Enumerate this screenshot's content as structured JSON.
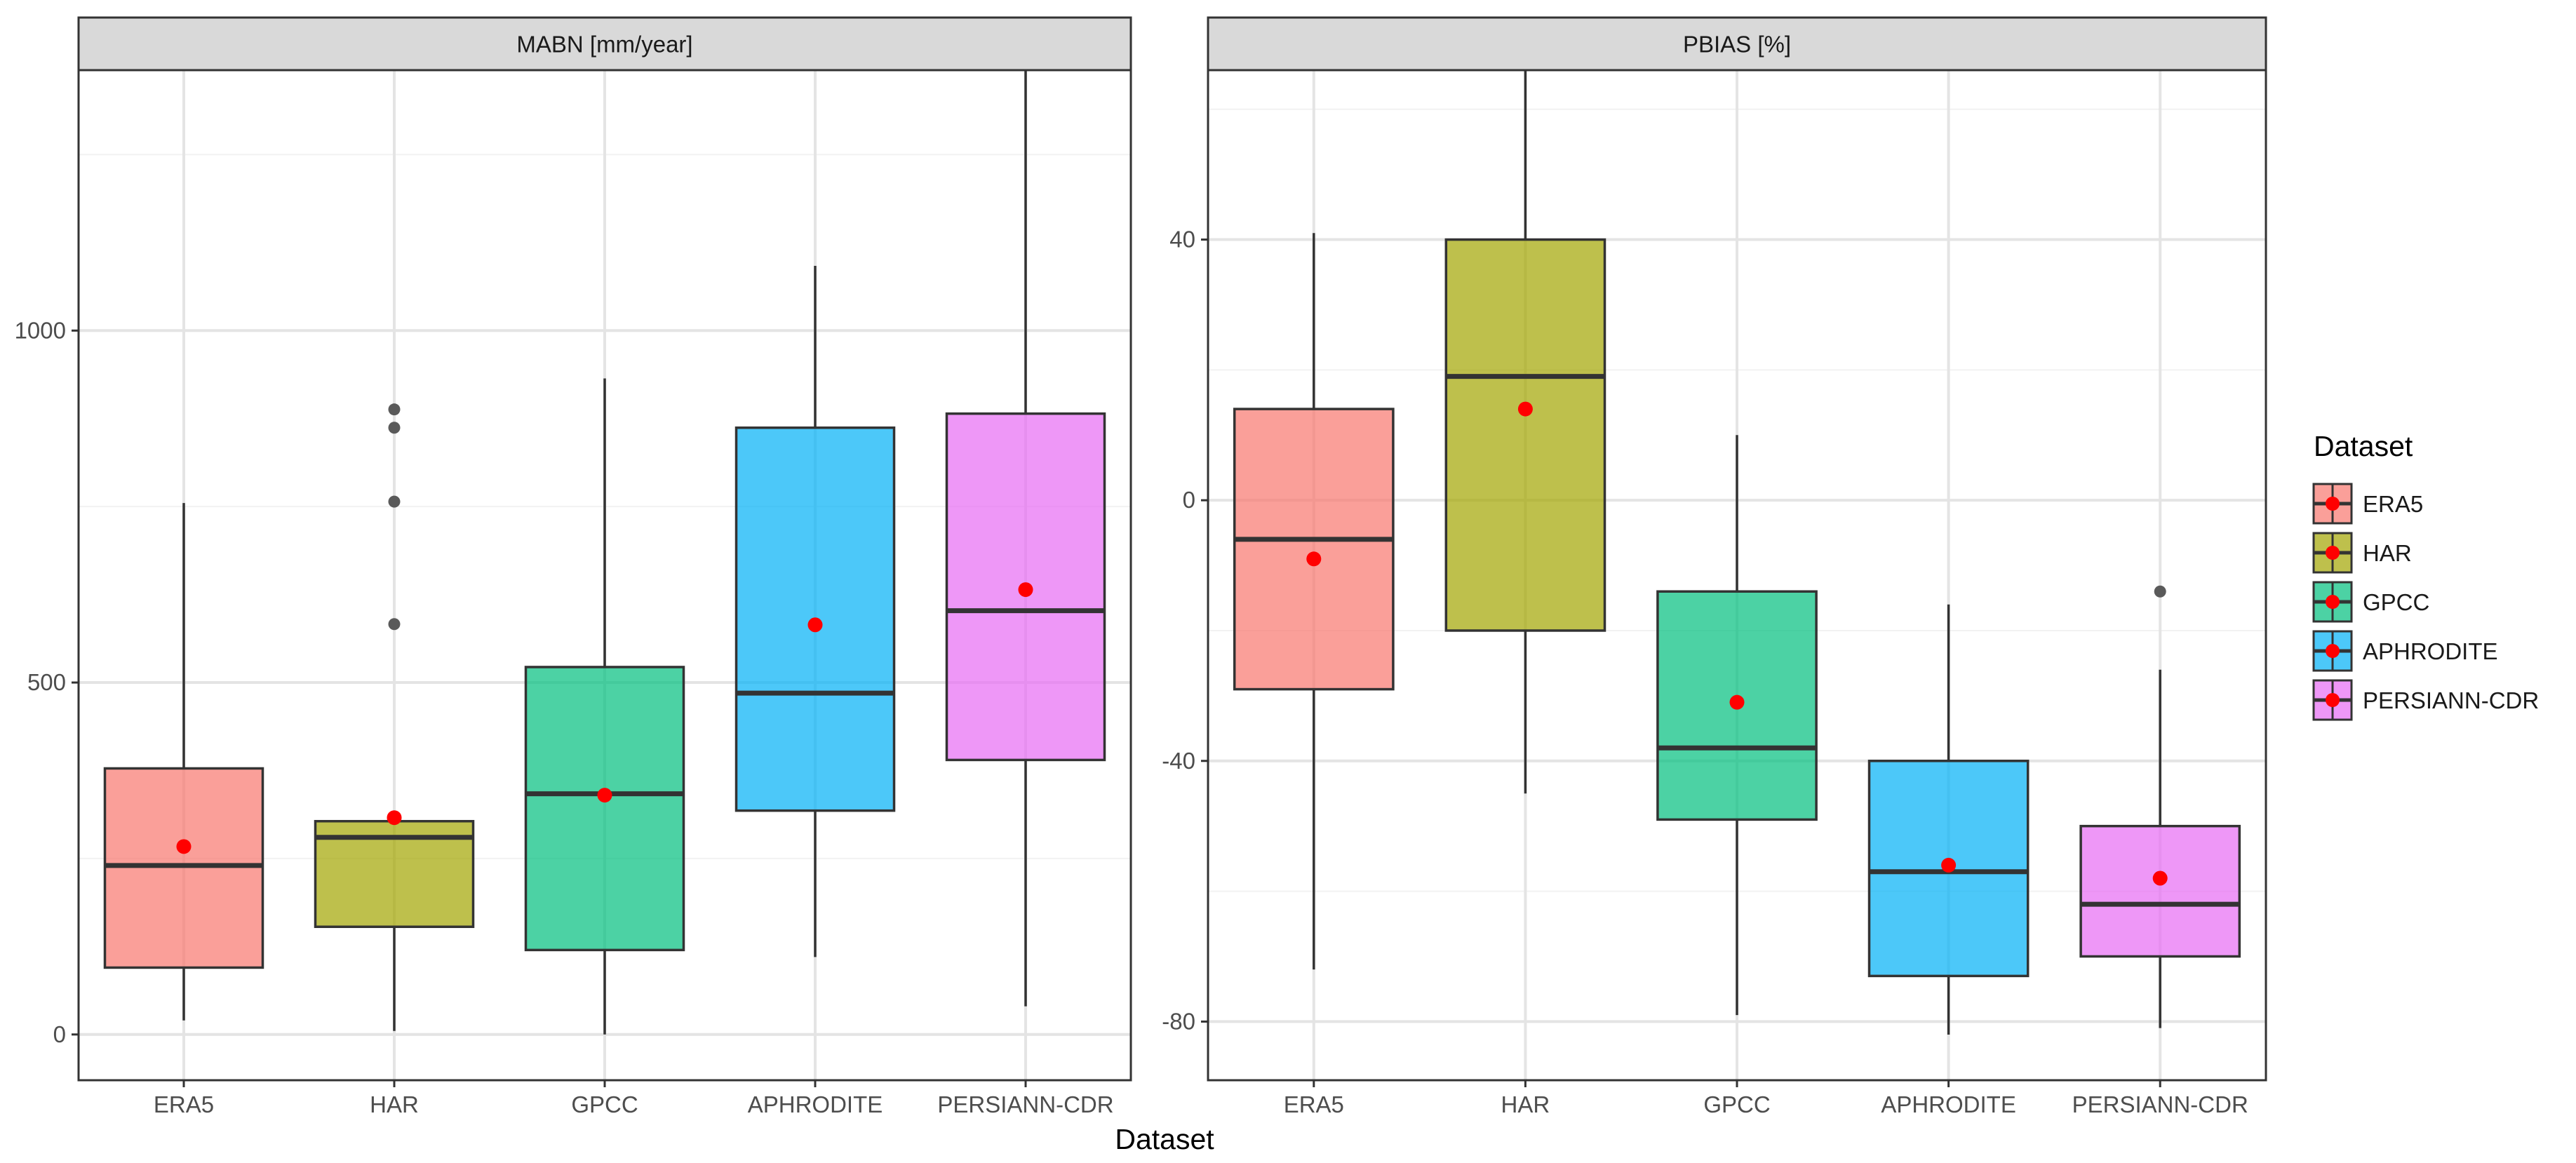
{
  "chart_data": {
    "type": "boxplot",
    "xlabel": "Dataset",
    "categories": [
      "ERA5",
      "HAR",
      "GPCC",
      "APHRODITE",
      "PERSIANN-CDR"
    ],
    "fill_colors": [
      "#F8766D",
      "#A3A500",
      "#00BF7D",
      "#00B0F6",
      "#E76BF3"
    ],
    "mean_marker_color": "#ff0000",
    "legend": {
      "title": "Dataset",
      "placement": "right",
      "entries": [
        "ERA5",
        "HAR",
        "GPCC",
        "APHRODITE",
        "PERSIANN-CDR"
      ]
    },
    "panels": [
      {
        "title": "MABN [mm/year]",
        "ylim": [
          -65,
          1370
        ],
        "yticks": [
          0,
          500,
          1000
        ],
        "ytick_labels": [
          "0",
          "500",
          "1000"
        ],
        "minor_yticks": [
          250,
          750,
          1250
        ],
        "boxes": [
          {
            "name": "ERA5",
            "whisker_low": 20,
            "q1": 95,
            "median": 240,
            "q3": 378,
            "whisker_high": 755,
            "mean": 267,
            "outliers": []
          },
          {
            "name": "HAR",
            "whisker_low": 5,
            "q1": 153,
            "median": 280,
            "q3": 303,
            "whisker_high": 303,
            "mean": 308,
            "outliers": [
              583,
              757,
              862,
              888
            ]
          },
          {
            "name": "GPCC",
            "whisker_low": 0,
            "q1": 120,
            "median": 342,
            "q3": 522,
            "whisker_high": 932,
            "mean": 340,
            "outliers": []
          },
          {
            "name": "APHRODITE",
            "whisker_low": 110,
            "q1": 318,
            "median": 485,
            "q3": 862,
            "whisker_high": 1092,
            "mean": 582,
            "outliers": []
          },
          {
            "name": "PERSIANN-CDR",
            "whisker_low": 40,
            "q1": 390,
            "median": 602,
            "q3": 882,
            "whisker_high": 1370,
            "mean": 632,
            "outliers": []
          }
        ]
      },
      {
        "title": "PBIAS [%]",
        "ylim": [
          -89,
          66
        ],
        "yticks": [
          -80,
          -40,
          0,
          40
        ],
        "ytick_labels": [
          "-80",
          "-40",
          "0",
          "40"
        ],
        "minor_yticks": [
          -60,
          -20,
          20,
          60
        ],
        "boxes": [
          {
            "name": "ERA5",
            "whisker_low": -72,
            "q1": -29,
            "median": -6,
            "q3": 14,
            "whisker_high": 41,
            "mean": -9,
            "outliers": []
          },
          {
            "name": "HAR",
            "whisker_low": -45,
            "q1": -20,
            "median": 19,
            "q3": 40,
            "whisker_high": 66,
            "mean": 14,
            "outliers": []
          },
          {
            "name": "GPCC",
            "whisker_low": -79,
            "q1": -49,
            "median": -38,
            "q3": -14,
            "whisker_high": 10,
            "mean": -31,
            "outliers": []
          },
          {
            "name": "APHRODITE",
            "whisker_low": -82,
            "q1": -73,
            "median": -57,
            "q3": -40,
            "whisker_high": -16,
            "mean": -56,
            "outliers": []
          },
          {
            "name": "PERSIANN-CDR",
            "whisker_low": -81,
            "q1": -70,
            "median": -62,
            "q3": -50,
            "whisker_high": -26,
            "mean": -58,
            "outliers": [
              -14
            ]
          }
        ]
      }
    ]
  }
}
